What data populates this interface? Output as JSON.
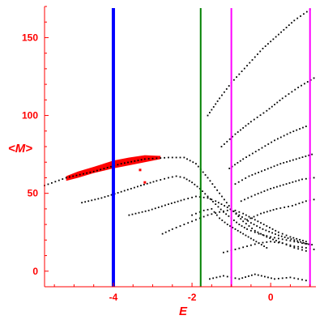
{
  "chart_data": {
    "type": "scatter",
    "xlabel": "E",
    "ylabel": "<M>",
    "xlim": [
      -5.75,
      1.15
    ],
    "ylim": [
      -10,
      170
    ],
    "x_ticks": [
      -4,
      -2,
      0
    ],
    "y_ticks": [
      0,
      50,
      100,
      150
    ],
    "x_tick_labels": [
      "-4",
      "-2",
      "0"
    ],
    "y_tick_labels": [
      "0",
      "50",
      "100",
      "150"
    ],
    "grid": false,
    "colors": {
      "axis": "#ff0000",
      "points": "#000000",
      "highlight": "#ff0000"
    },
    "vertical_lines": [
      {
        "x": -4.0,
        "color": "#0000ff",
        "width": "thick"
      },
      {
        "x": -1.78,
        "color": "#008000",
        "width": "normal"
      },
      {
        "x": -1.0,
        "color": "#ff00ff",
        "width": "normal"
      },
      {
        "x": 1.0,
        "color": "#ff00ff",
        "width": "normal"
      }
    ],
    "red_band": {
      "upper": [
        [
          -5.2,
          61
        ],
        [
          -4.9,
          64
        ],
        [
          -4.5,
          67
        ],
        [
          -4.0,
          71
        ],
        [
          -3.6,
          73
        ],
        [
          -3.2,
          74.5
        ],
        [
          -2.8,
          74
        ]
      ],
      "lower": [
        [
          -5.2,
          58
        ],
        [
          -4.9,
          60
        ],
        [
          -4.5,
          63
        ],
        [
          -4.0,
          66
        ],
        [
          -3.6,
          68
        ],
        [
          -3.2,
          70
        ],
        [
          -2.8,
          72
        ]
      ]
    },
    "red_points": [
      [
        -3.32,
        65
      ],
      [
        -3.2,
        57
      ]
    ],
    "series": [
      {
        "values": [
          [
            -5.75,
            55
          ],
          [
            -5.2,
            60
          ],
          [
            -4.5,
            64
          ],
          [
            -3.8,
            69
          ],
          [
            -3.2,
            72
          ],
          [
            -2.6,
            73
          ],
          [
            -2.2,
            73
          ],
          [
            -1.9,
            69
          ],
          [
            -1.6,
            60
          ],
          [
            -1.3,
            50
          ],
          [
            -1.0,
            40
          ],
          [
            -0.7,
            32
          ],
          [
            -0.4,
            26
          ],
          [
            -0.1,
            22
          ],
          [
            0.3,
            18
          ],
          [
            0.6,
            15
          ],
          [
            0.9,
            13
          ]
        ]
      },
      {
        "values": [
          [
            -4.8,
            44
          ],
          [
            -4.3,
            47
          ],
          [
            -3.8,
            51
          ],
          [
            -3.3,
            55
          ],
          [
            -2.9,
            58
          ],
          [
            -2.6,
            60
          ],
          [
            -2.4,
            61
          ],
          [
            -2.2,
            60
          ],
          [
            -2.0,
            57
          ],
          [
            -1.8,
            53
          ],
          [
            -1.6,
            48
          ],
          [
            -1.4,
            43
          ],
          [
            -1.2,
            38
          ],
          [
            -1.0,
            34
          ],
          [
            -0.8,
            30
          ],
          [
            -0.6,
            27
          ],
          [
            -0.3,
            24
          ],
          [
            0.0,
            22
          ],
          [
            0.4,
            20
          ],
          [
            0.8,
            18
          ],
          [
            1.05,
            17
          ]
        ]
      },
      {
        "values": [
          [
            -3.6,
            36
          ],
          [
            -3.1,
            39
          ],
          [
            -2.6,
            43
          ],
          [
            -2.2,
            46
          ],
          [
            -1.9,
            48
          ],
          [
            -1.6,
            47
          ],
          [
            -1.4,
            45
          ],
          [
            -1.1,
            41
          ],
          [
            -0.8,
            36
          ],
          [
            -0.5,
            31
          ],
          [
            -0.2,
            27
          ],
          [
            0.2,
            23
          ],
          [
            0.6,
            20
          ],
          [
            1.0,
            17
          ]
        ]
      },
      {
        "values": [
          [
            -2.75,
            24
          ],
          [
            -2.5,
            27
          ],
          [
            -2.2,
            30
          ],
          [
            -1.9,
            33
          ],
          [
            -1.6,
            36
          ],
          [
            -1.3,
            38
          ],
          [
            -1.1,
            39
          ],
          [
            -0.9,
            39
          ],
          [
            -0.7,
            37
          ],
          [
            -0.4,
            33
          ],
          [
            -0.1,
            29
          ],
          [
            0.2,
            25
          ],
          [
            0.5,
            22
          ],
          [
            0.9,
            19
          ]
        ]
      },
      {
        "values": [
          [
            -2.0,
            36
          ],
          [
            -1.7,
            39
          ],
          [
            -1.5,
            40
          ],
          [
            -1.3,
            34
          ],
          [
            -1.1,
            30
          ],
          [
            -0.9,
            27
          ],
          [
            -0.7,
            24
          ],
          [
            -0.5,
            21
          ],
          [
            -0.3,
            18
          ],
          [
            -0.1,
            15
          ]
        ]
      },
      {
        "values": [
          [
            -1.2,
            12
          ],
          [
            -0.9,
            14
          ],
          [
            -0.6,
            16
          ],
          [
            -0.3,
            18
          ],
          [
            0.0,
            19
          ],
          [
            0.3,
            18
          ],
          [
            0.6,
            16
          ],
          [
            0.9,
            15
          ],
          [
            1.1,
            14
          ]
        ]
      },
      {
        "values": [
          [
            -1.55,
            -5
          ],
          [
            -1.2,
            -3
          ],
          [
            -0.8,
            -5
          ],
          [
            -0.4,
            -2
          ],
          [
            0.1,
            -5
          ],
          [
            0.5,
            -4
          ],
          [
            0.9,
            -6
          ]
        ]
      },
      {
        "values": [
          [
            -1.6,
            100
          ],
          [
            -1.3,
            111
          ],
          [
            -1.0,
            121
          ],
          [
            -0.6,
            132
          ],
          [
            -0.2,
            143
          ],
          [
            0.2,
            152
          ],
          [
            0.6,
            161
          ],
          [
            1.0,
            168
          ]
        ]
      },
      {
        "values": [
          [
            -1.25,
            80
          ],
          [
            -0.9,
            88
          ],
          [
            -0.5,
            96
          ],
          [
            -0.1,
            103
          ],
          [
            0.3,
            111
          ],
          [
            0.7,
            118
          ],
          [
            1.1,
            124
          ]
        ]
      },
      {
        "values": [
          [
            -1.05,
            66
          ],
          [
            -0.7,
            72
          ],
          [
            -0.3,
            78
          ],
          [
            0.1,
            84
          ],
          [
            0.5,
            89
          ],
          [
            0.9,
            93
          ]
        ]
      },
      {
        "values": [
          [
            -0.9,
            56
          ],
          [
            -0.55,
            61
          ],
          [
            -0.15,
            65
          ],
          [
            0.25,
            69
          ],
          [
            0.65,
            72
          ],
          [
            1.05,
            75
          ]
        ]
      },
      {
        "values": [
          [
            -0.75,
            45
          ],
          [
            -0.4,
            49
          ],
          [
            0.0,
            53
          ],
          [
            0.4,
            56
          ],
          [
            0.8,
            59
          ],
          [
            1.1,
            60
          ]
        ]
      },
      {
        "values": [
          [
            -0.6,
            33
          ],
          [
            -0.25,
            37
          ],
          [
            0.15,
            40
          ],
          [
            0.55,
            42
          ],
          [
            0.9,
            45
          ],
          [
            1.1,
            46
          ]
        ]
      }
    ]
  }
}
